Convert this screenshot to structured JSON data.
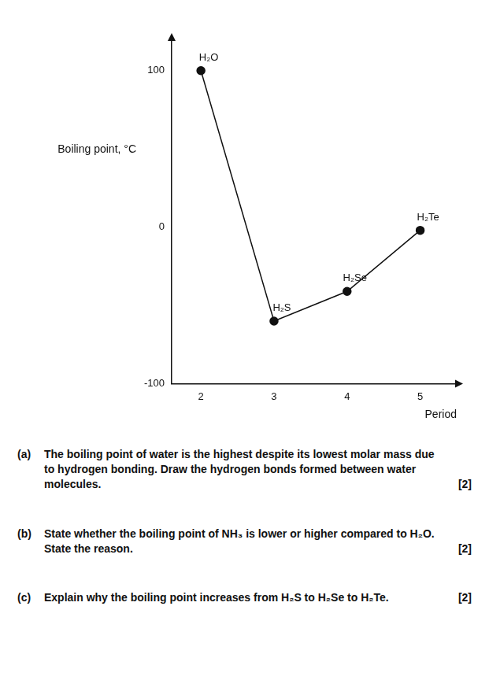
{
  "chart_data": {
    "type": "line",
    "x_label": "Period",
    "y_label": "Boiling point, °C",
    "x": [
      2,
      3,
      4,
      5
    ],
    "values": [
      100,
      -60,
      -41,
      -2
    ],
    "point_labels": [
      "H₂O",
      "H₂S",
      "H₂Se",
      "H₂Te"
    ],
    "color": "#111111",
    "xlim": [
      1.6,
      5.5
    ],
    "xticks": [
      2,
      3,
      4,
      5
    ],
    "ylim": [
      -100,
      120
    ],
    "yticks": [
      -100,
      0,
      100
    ],
    "grid": false,
    "marker": "circle"
  },
  "questions": [
    {
      "label": "(a)",
      "text": "The boiling point of water is the highest despite its lowest molar mass due to hydrogen bonding. Draw the hydrogen bonds formed between water molecules.",
      "marks": "[2]"
    },
    {
      "label": "(b)",
      "text": "State whether the boiling point of NH₃ is lower or higher compared to H₂O. State the reason.",
      "marks": "[2]"
    },
    {
      "label": "(c)",
      "text": "Explain why the boiling point increases from H₂S to H₂Se to H₂Te.",
      "marks": "[2]"
    }
  ]
}
